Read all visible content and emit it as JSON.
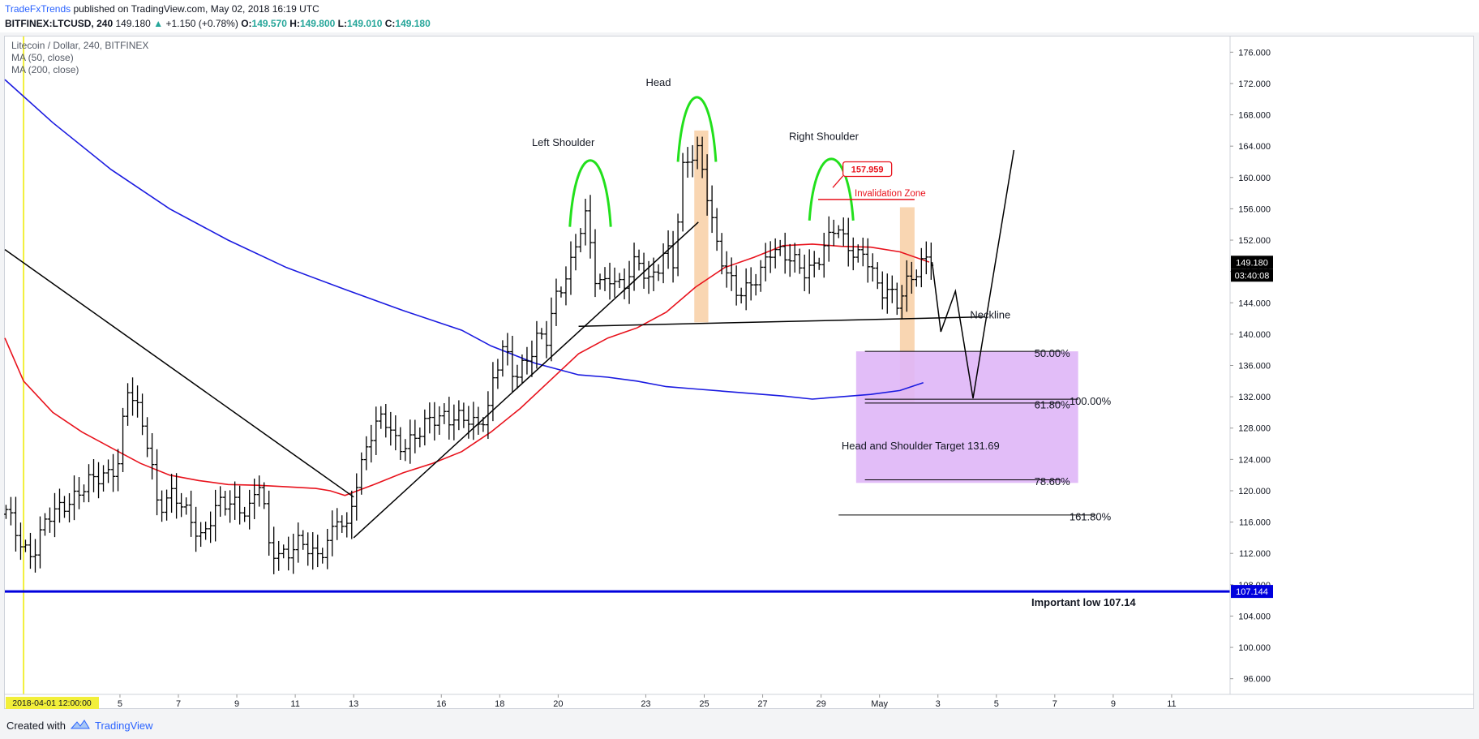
{
  "header": {
    "author": "TradeFxTrends",
    "published_text": "published on TradingView.com, May 02, 2018 16:19 UTC",
    "symbol": "BITFINEX:LTCUSD, 240",
    "last": "149.180",
    "change_arrow": "▲",
    "change": "+1.150 (+0.78%)",
    "o_label": "O:",
    "o_value": "149.570",
    "h_label": "H:",
    "h_value": "149.800",
    "l_label": "L:",
    "l_value": "149.010",
    "c_label": "C:",
    "c_value": "149.180"
  },
  "legend": {
    "title": "Litecoin / Dollar, 240, BITFINEX",
    "ma50": "MA (50, close)",
    "ma200": "MA (200, close)"
  },
  "price_scale": {
    "current_price": "149.180",
    "countdown": "03:40:08",
    "line_price": "107.144"
  },
  "crosshair_date": "2018-04-01 12:00:00",
  "footer": {
    "created_with": "Created with",
    "brand": "TradingView"
  },
  "annotations": {
    "left_shoulder": "Left Shoulder",
    "head": "Head",
    "right_shoulder": "Right Shoulder",
    "neckline": "Neckline",
    "invalidation_zone": "Invalidation Zone",
    "invalidation_price": "157.959",
    "target": "Head and Shoulder Target 131.69",
    "important_low": "Important low 107.14",
    "fib_50": "50.00%",
    "fib_618": "61.80%",
    "fib_100": "100.00%",
    "fib_786": "78.60%",
    "fib_1618": "161.80%"
  },
  "colors": {
    "bar": "#000000",
    "ma50": "#e8121c",
    "ma200": "#1a1ae0",
    "support_line": "#0000dd",
    "shoulder_arcs": "#22e01c",
    "highlight": "#f8cfa5",
    "target_zone": "#dfb6f7",
    "invalidation": "#e8121c",
    "crosshair": "#f2ef3a"
  },
  "chart_data": {
    "type": "ohlc",
    "title": "Litecoin / Dollar, 240, BITFINEX",
    "timeframe": "240",
    "ylim": [
      94,
      178
    ],
    "y_ticks": [
      "96.000",
      "100.000",
      "104.000",
      "108.000",
      "112.000",
      "116.000",
      "120.000",
      "124.000",
      "128.000",
      "132.000",
      "136.000",
      "140.000",
      "144.000",
      "148.000",
      "152.000",
      "156.000",
      "160.000",
      "164.000",
      "168.000",
      "172.000",
      "176.000"
    ],
    "x_ticks": [
      "5",
      "7",
      "9",
      "11",
      "13",
      "16",
      "18",
      "20",
      "23",
      "25",
      "27",
      "29",
      "May",
      "3",
      "5",
      "7",
      "9",
      "11"
    ],
    "x_tick_days": [
      4.8,
      6.8,
      8.8,
      10.8,
      12.8,
      15.8,
      17.8,
      19.8,
      22.8,
      24.8,
      26.8,
      28.8,
      30.8,
      32.8,
      34.8,
      36.8,
      38.8,
      40.8
    ],
    "xlim": [
      0.86,
      42.8
    ],
    "anchors": [
      [
        0.9,
        117
      ],
      [
        1.5,
        113
      ],
      [
        1.8,
        112
      ],
      [
        2.3,
        116
      ],
      [
        3.0,
        119
      ],
      [
        3.5,
        120
      ],
      [
        4.2,
        122
      ],
      [
        4.8,
        124
      ],
      [
        5.0,
        133
      ],
      [
        5.3,
        131
      ],
      [
        5.8,
        126
      ],
      [
        6.1,
        118
      ],
      [
        6.6,
        119
      ],
      [
        7.2,
        117
      ],
      [
        7.6,
        114
      ],
      [
        8.2,
        118
      ],
      [
        8.7,
        119
      ],
      [
        9.2,
        117
      ],
      [
        9.6,
        121
      ],
      [
        9.9,
        113
      ],
      [
        10.5,
        112
      ],
      [
        11.0,
        113
      ],
      [
        11.5,
        112
      ],
      [
        12.0,
        114
      ],
      [
        12.3,
        117
      ],
      [
        12.5,
        113
      ],
      [
        12.8,
        120
      ],
      [
        13.3,
        127
      ],
      [
        13.8,
        129
      ],
      [
        14.3,
        126
      ],
      [
        15.0,
        127
      ],
      [
        15.5,
        129
      ],
      [
        15.9,
        130
      ],
      [
        16.5,
        129
      ],
      [
        17.0,
        128
      ],
      [
        17.4,
        131
      ],
      [
        17.6,
        135
      ],
      [
        17.9,
        138
      ],
      [
        18.3,
        134
      ],
      [
        18.7,
        137
      ],
      [
        19.1,
        140
      ],
      [
        19.4,
        139
      ],
      [
        19.7,
        144
      ],
      [
        19.9,
        146
      ],
      [
        20.2,
        149
      ],
      [
        20.4,
        152
      ],
      [
        20.6,
        154
      ],
      [
        20.8,
        155
      ],
      [
        21.0,
        147
      ],
      [
        21.3,
        146
      ],
      [
        21.6,
        148
      ],
      [
        22.0,
        146
      ],
      [
        22.5,
        149
      ],
      [
        22.9,
        147
      ],
      [
        23.2,
        149
      ],
      [
        23.5,
        151
      ],
      [
        23.8,
        148
      ],
      [
        24.0,
        160
      ],
      [
        24.3,
        163
      ],
      [
        24.6,
        164
      ],
      [
        24.9,
        158
      ],
      [
        25.2,
        151
      ],
      [
        25.5,
        148
      ],
      [
        25.9,
        146
      ],
      [
        26.3,
        146
      ],
      [
        26.7,
        147
      ],
      [
        27.1,
        151
      ],
      [
        27.5,
        151
      ],
      [
        27.9,
        149
      ],
      [
        28.3,
        147
      ],
      [
        28.7,
        150
      ],
      [
        29.1,
        153
      ],
      [
        29.3,
        154
      ],
      [
        29.6,
        151
      ],
      [
        30.0,
        150
      ],
      [
        30.3,
        151
      ],
      [
        30.5,
        149
      ],
      [
        30.8,
        145
      ],
      [
        31.1,
        145
      ],
      [
        31.4,
        144
      ],
      [
        31.7,
        147
      ],
      [
        32.0,
        148
      ],
      [
        32.4,
        149
      ],
      [
        32.6,
        149.18
      ]
    ],
    "ohlc_style": {
      "tick_len": 1.2
    },
    "series": [
      {
        "name": "MA (50, close)",
        "points": [
          [
            0.86,
            139.5
          ],
          [
            1.5,
            134
          ],
          [
            2.5,
            130
          ],
          [
            3.5,
            127.5
          ],
          [
            4.5,
            125.5
          ],
          [
            5.5,
            123.5
          ],
          [
            6.5,
            122
          ],
          [
            7.5,
            121.3
          ],
          [
            8.5,
            120.8
          ],
          [
            9.5,
            120.7
          ],
          [
            10.5,
            120.5
          ],
          [
            11.5,
            120.3
          ],
          [
            12.0,
            120.0
          ],
          [
            12.5,
            119.4
          ],
          [
            13.5,
            120.8
          ],
          [
            14.5,
            122.3
          ],
          [
            15.5,
            123.5
          ],
          [
            16.5,
            125
          ],
          [
            17.5,
            127.5
          ],
          [
            18.5,
            130.5
          ],
          [
            19.5,
            134
          ],
          [
            20.5,
            137.5
          ],
          [
            21.5,
            139.5
          ],
          [
            22.5,
            140.8
          ],
          [
            23.5,
            142.8
          ],
          [
            24.5,
            146
          ],
          [
            25.5,
            148.5
          ],
          [
            26.5,
            149.8
          ],
          [
            27.5,
            151.3
          ],
          [
            28.5,
            151.5
          ],
          [
            29.5,
            151.2
          ],
          [
            30.5,
            151.1
          ],
          [
            31.5,
            150.5
          ],
          [
            32.5,
            149.2
          ]
        ]
      },
      {
        "name": "MA (200, close)",
        "points": [
          [
            0.86,
            172.5
          ],
          [
            2.5,
            167
          ],
          [
            4.5,
            161
          ],
          [
            6.5,
            156
          ],
          [
            8.5,
            152
          ],
          [
            10.5,
            148.5
          ],
          [
            12.5,
            145.7
          ],
          [
            14.5,
            143
          ],
          [
            16.5,
            140.5
          ],
          [
            17.5,
            138.5
          ],
          [
            19.0,
            136.3
          ],
          [
            20.5,
            134.8
          ],
          [
            21.5,
            134.5
          ],
          [
            22.5,
            134
          ],
          [
            23.5,
            133.3
          ],
          [
            24.5,
            133
          ],
          [
            25.5,
            132.7
          ],
          [
            26.5,
            132.4
          ],
          [
            27.5,
            132.1
          ],
          [
            28.5,
            131.7
          ],
          [
            29.5,
            132
          ],
          [
            30.5,
            132.3
          ],
          [
            31.5,
            132.8
          ],
          [
            32.3,
            133.8
          ]
        ]
      }
    ],
    "horizontal_lines": [
      {
        "value": 107.144
      }
    ],
    "fib_levels": [
      {
        "label": "50.00%",
        "value": 137.8
      },
      {
        "label": "61.80%",
        "value": 131.2
      },
      {
        "label": "100.00%",
        "value": 131.69
      },
      {
        "label": "78.60%",
        "value": 121.4
      },
      {
        "label": "161.80%",
        "value": 116.9
      }
    ],
    "drawings": {
      "downtrend": [
        [
          0.86,
          150.8
        ],
        [
          12.8,
          119.2
        ]
      ],
      "uptrend": [
        [
          12.8,
          114.0
        ],
        [
          24.6,
          154.3
        ]
      ],
      "neckline": [
        [
          20.5,
          141.0
        ],
        [
          34.4,
          142.2
        ]
      ],
      "projection": [
        [
          32.6,
          149.2
        ],
        [
          32.9,
          140.3
        ],
        [
          33.4,
          145.5
        ],
        [
          34.0,
          131.8
        ],
        [
          35.4,
          163.5
        ]
      ],
      "head_peak": 170,
      "shoulder_peaks": [
        162,
        162
      ]
    }
  }
}
